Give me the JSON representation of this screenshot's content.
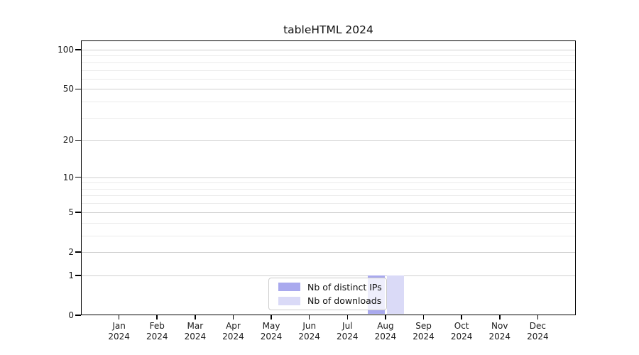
{
  "chart_data": {
    "type": "bar",
    "title": "tableHTML 2024",
    "categories": [
      "Jan",
      "Feb",
      "Mar",
      "Apr",
      "May",
      "Jun",
      "Jul",
      "Aug",
      "Sep",
      "Oct",
      "Nov",
      "Dec"
    ],
    "year_label": "2024",
    "series": [
      {
        "name": "Nb of distinct IPs",
        "color": "#a9a9ee",
        "values": [
          0,
          0,
          0,
          0,
          0,
          0,
          0,
          1,
          0,
          0,
          0,
          0
        ]
      },
      {
        "name": "Nb of downloads",
        "color": "#dadaf7",
        "values": [
          0,
          0,
          0,
          0,
          0,
          0,
          0,
          1,
          0,
          0,
          0,
          0
        ]
      }
    ],
    "yscale": "log1p",
    "ylim": [
      0,
      100
    ],
    "yticks": [
      0,
      1,
      2,
      5,
      10,
      20,
      50,
      100
    ],
    "major_gridlines": [
      1,
      2,
      5,
      10,
      20,
      50,
      100
    ],
    "minor_gridlines": [
      3,
      4,
      6,
      7,
      8,
      9,
      30,
      40,
      60,
      70,
      80,
      90
    ],
    "grid": true,
    "legend_position": "bottom-center",
    "colors": {
      "major_grid": "#cfcfcf",
      "minor_grid": "#ebebeb",
      "axis": "#000000",
      "legend_border": "#cccccc"
    }
  }
}
